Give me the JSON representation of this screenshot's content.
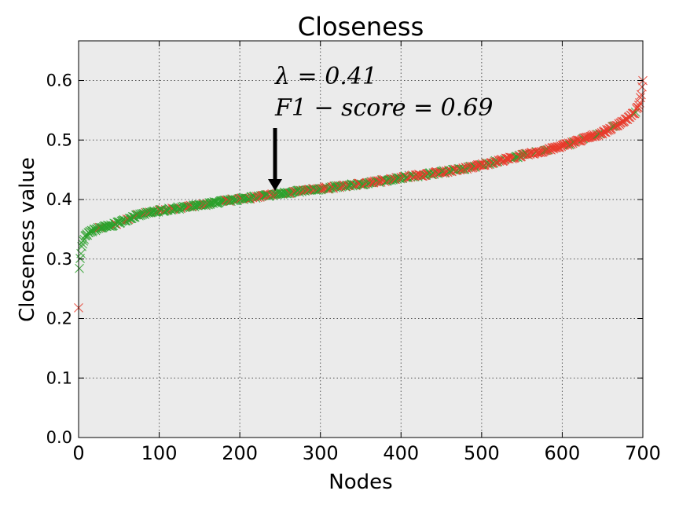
{
  "chart_data": {
    "type": "scatter",
    "title": "Closeness",
    "xlabel": "Nodes",
    "ylabel": "Closeness value",
    "xlim": [
      0,
      700
    ],
    "ylim": [
      0,
      0.6667
    ],
    "xticks": [
      "0",
      "100",
      "200",
      "300",
      "400",
      "500",
      "600",
      "700"
    ],
    "yticks": [
      "0.0",
      "0.1",
      "0.2",
      "0.3",
      "0.4",
      "0.5",
      "0.6"
    ],
    "grid": true,
    "background": "#ebebeb",
    "marker": "x",
    "series_colors": {
      "first": "#2ca02c",
      "second": "#e8392a"
    },
    "curve": [
      [
        0,
        0.22
      ],
      [
        1,
        0.285
      ],
      [
        2,
        0.3
      ],
      [
        4,
        0.32
      ],
      [
        8,
        0.338
      ],
      [
        15,
        0.346
      ],
      [
        25,
        0.352
      ],
      [
        40,
        0.356
      ],
      [
        55,
        0.364
      ],
      [
        70,
        0.372
      ],
      [
        85,
        0.377
      ],
      [
        100,
        0.381
      ],
      [
        125,
        0.386
      ],
      [
        150,
        0.39
      ],
      [
        175,
        0.396
      ],
      [
        200,
        0.401
      ],
      [
        225,
        0.405
      ],
      [
        250,
        0.41
      ],
      [
        275,
        0.414
      ],
      [
        300,
        0.418
      ],
      [
        325,
        0.422
      ],
      [
        350,
        0.426
      ],
      [
        375,
        0.431
      ],
      [
        400,
        0.437
      ],
      [
        425,
        0.441
      ],
      [
        450,
        0.446
      ],
      [
        475,
        0.451
      ],
      [
        500,
        0.458
      ],
      [
        525,
        0.466
      ],
      [
        550,
        0.474
      ],
      [
        575,
        0.481
      ],
      [
        600,
        0.49
      ],
      [
        625,
        0.501
      ],
      [
        650,
        0.512
      ],
      [
        665,
        0.523
      ],
      [
        680,
        0.535
      ],
      [
        690,
        0.546
      ],
      [
        695,
        0.558
      ],
      [
        698,
        0.575
      ],
      [
        700,
        0.6
      ]
    ],
    "annotation": {
      "line1": "λ = 0.41",
      "line2": "F1 − score = 0.69",
      "x": 245,
      "y": 0.41
    }
  }
}
